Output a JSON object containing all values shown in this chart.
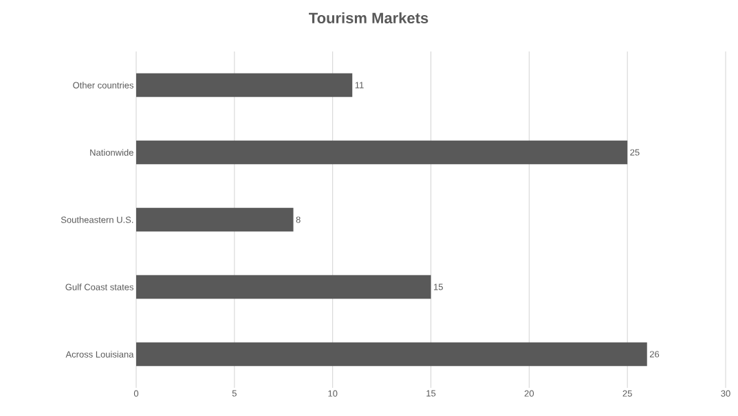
{
  "chart_data": {
    "type": "bar",
    "title": "Tourism Markets",
    "orientation": "horizontal",
    "categories": [
      "Other countries",
      "Nationwide",
      "Southeastern U.S.",
      "Gulf Coast states",
      "Across Louisiana"
    ],
    "values": [
      11,
      25,
      8,
      15,
      26
    ],
    "color": "#595959",
    "xlim": [
      0,
      30
    ],
    "xticks": [
      0,
      5,
      10,
      15,
      20,
      25,
      30
    ],
    "grid": "x",
    "data_labels": true
  }
}
